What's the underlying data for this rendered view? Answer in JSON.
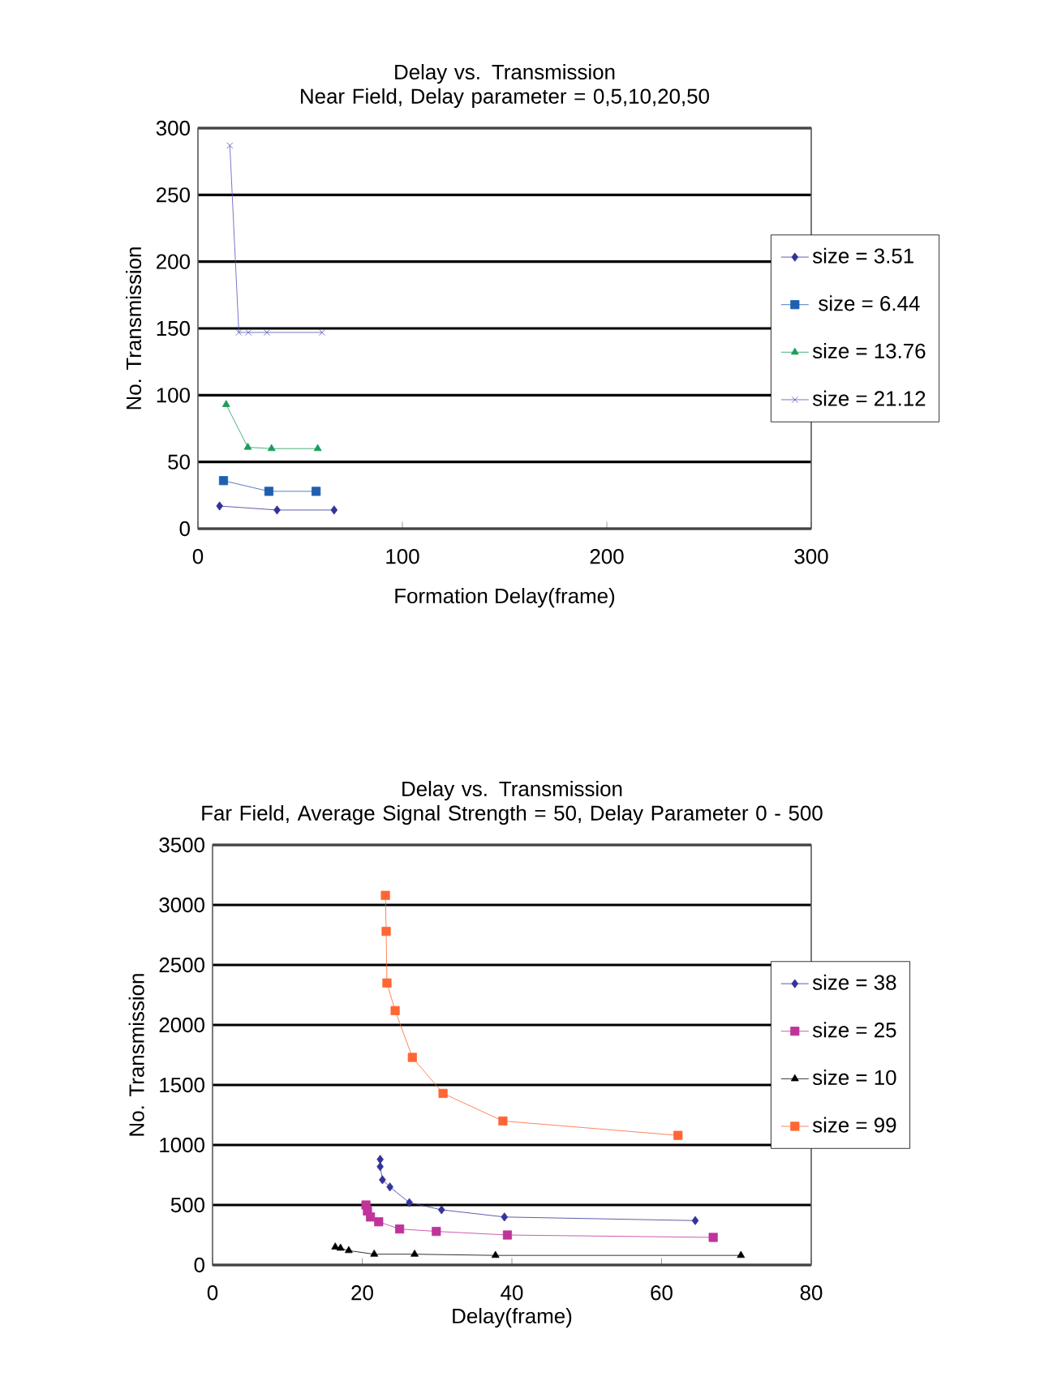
{
  "chart_data": [
    {
      "type": "line",
      "title": "Delay vs. Transmission",
      "subtitle": "Near Field, Delay parameter = 0,5,10,20,50",
      "xlabel": "Formation Delay(frame)",
      "ylabel": "No. Transmission",
      "xlim": [
        0,
        300
      ],
      "xticks": [
        0,
        100,
        200,
        300
      ],
      "ylim": [
        0,
        300
      ],
      "yticks": [
        0,
        50,
        100,
        150,
        200,
        250,
        300
      ],
      "grid": "y",
      "legend": "right",
      "series": [
        {
          "name": "size = 3.51",
          "color": "#333399",
          "marker": "diamond",
          "x": [
            10.6,
            38.7,
            66.6
          ],
          "values": [
            17,
            14,
            14
          ]
        },
        {
          "name": " size = 6.44",
          "color": "#1f5fb0",
          "marker": "square",
          "x": [
            12.5,
            34.7,
            57.8
          ],
          "values": [
            36,
            28,
            28
          ]
        },
        {
          "name": "size = 13.76",
          "color": "#1a9e5a",
          "marker": "triangle",
          "x": [
            13.8,
            24.4,
            36,
            58.6
          ],
          "values": [
            93,
            61,
            60,
            60
          ]
        },
        {
          "name": "size = 21.12",
          "color": "#5555bb",
          "marker": "cross",
          "x": [
            15.6,
            20,
            24.7,
            33.7,
            60.7
          ],
          "values": [
            287,
            147,
            147,
            147,
            147
          ]
        }
      ]
    },
    {
      "type": "line",
      "title": "Delay vs. Transmission",
      "subtitle": "Far Field, Average Signal Strength = 50, Delay Parameter 0 - 500",
      "xlabel": "Delay(frame)",
      "ylabel": "No. Transmission",
      "xlim": [
        0,
        80
      ],
      "xticks": [
        0,
        20,
        40,
        60,
        80
      ],
      "ylim": [
        0,
        3500
      ],
      "yticks": [
        0,
        500,
        1000,
        1500,
        2000,
        2500,
        3000,
        3500
      ],
      "grid": "y",
      "legend": "right",
      "series": [
        {
          "name": "size = 38",
          "color": "#333399",
          "marker": "diamond",
          "x": [
            22.4,
            22.4,
            22.7,
            23.7,
            26.3,
            30.6,
            39,
            64.5
          ],
          "values": [
            880,
            820,
            710,
            650,
            520,
            460,
            400,
            370
          ]
        },
        {
          "name": "size = 25",
          "color": "#c0339a",
          "marker": "square",
          "x": [
            20.5,
            20.7,
            21.1,
            22.2,
            25,
            29.9,
            39.4,
            66.9
          ],
          "values": [
            500,
            450,
            400,
            360,
            300,
            280,
            250,
            230
          ]
        },
        {
          "name": "size = 10",
          "color": "#000000",
          "marker": "triangle",
          "x": [
            16.4,
            17.1,
            18.2,
            21.6,
            27,
            37.8,
            70.6
          ],
          "values": [
            150,
            140,
            120,
            90,
            90,
            80,
            80
          ]
        },
        {
          "name": "size = 99",
          "color": "#ff6633",
          "marker": "square",
          "x": [
            23.1,
            23.2,
            23.3,
            24.4,
            26.7,
            30.8,
            38.8,
            62.2
          ],
          "values": [
            3080,
            2780,
            2350,
            2120,
            1730,
            1430,
            1200,
            1080
          ]
        }
      ]
    }
  ]
}
